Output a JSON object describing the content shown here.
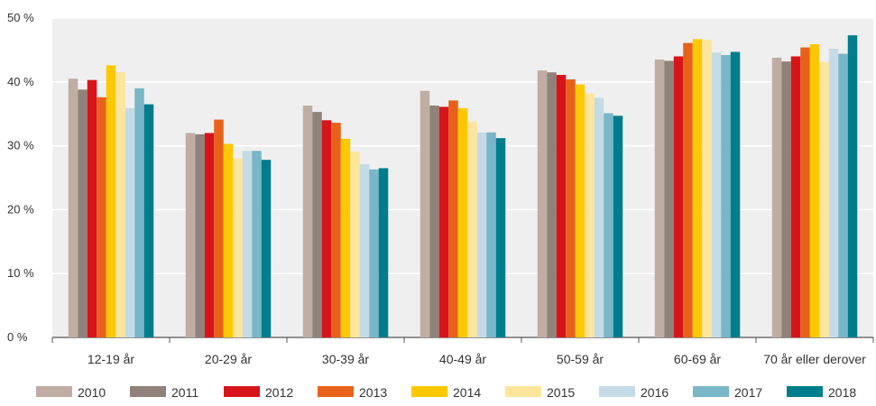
{
  "chart_data": {
    "type": "bar",
    "title": "",
    "xlabel": "",
    "ylabel": "",
    "ylim": [
      0,
      50
    ],
    "yticks": [
      0,
      10,
      20,
      30,
      40,
      50
    ],
    "ytick_labels": [
      "0 %",
      "10 %",
      "20 %",
      "30 %",
      "40 %",
      "50 %"
    ],
    "grid": "horizontal",
    "legend_position": "bottom",
    "categories": [
      "12-19 år",
      "20-29 år",
      "30-39 år",
      "40-49 år",
      "50-59 år",
      "60-69 år",
      "70 år eller derover"
    ],
    "series": [
      {
        "name": "2010",
        "color": "#bfada3",
        "values": [
          40.5,
          32.0,
          36.3,
          38.6,
          41.8,
          43.5,
          43.8
        ]
      },
      {
        "name": "2011",
        "color": "#8f827b",
        "values": [
          38.8,
          31.8,
          35.3,
          36.3,
          41.5,
          43.3,
          43.2
        ]
      },
      {
        "name": "2012",
        "color": "#d7141a",
        "values": [
          40.3,
          32.0,
          34.0,
          36.1,
          41.1,
          44.0,
          44.0
        ]
      },
      {
        "name": "2013",
        "color": "#e8611a",
        "values": [
          37.6,
          34.1,
          33.6,
          37.1,
          40.4,
          46.1,
          45.4
        ]
      },
      {
        "name": "2014",
        "color": "#ffc800",
        "values": [
          42.6,
          30.3,
          31.1,
          35.9,
          39.6,
          46.7,
          45.9
        ]
      },
      {
        "name": "2015",
        "color": "#fde59c",
        "values": [
          41.5,
          28.0,
          29.1,
          33.8,
          38.2,
          46.6,
          43.1
        ]
      },
      {
        "name": "2016",
        "color": "#c4dbe6",
        "values": [
          35.9,
          29.2,
          27.1,
          32.1,
          37.5,
          44.6,
          45.2
        ]
      },
      {
        "name": "2017",
        "color": "#78b6c8",
        "values": [
          39.0,
          29.2,
          26.3,
          32.1,
          35.1,
          44.2,
          44.4
        ]
      },
      {
        "name": "2018",
        "color": "#007d8c",
        "values": [
          36.5,
          27.8,
          26.5,
          31.2,
          34.7,
          44.7,
          47.3
        ]
      }
    ]
  }
}
